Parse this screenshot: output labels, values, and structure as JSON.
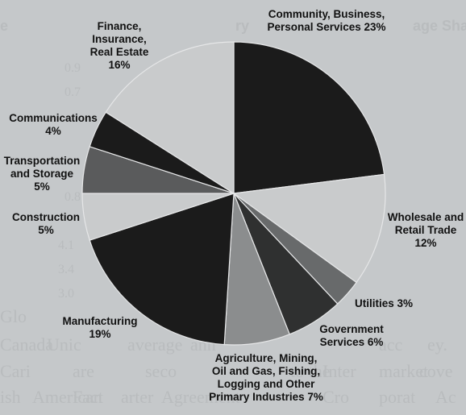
{
  "background_text": {
    "header_fragments": [
      "e",
      "age Share",
      "ry"
    ],
    "column_numbers": [
      "0.9",
      "0.7",
      "0.8",
      "4.1",
      "3.4",
      "3.0",
      "0.7",
      "0.8"
    ],
    "lines": [
      "Glo",
      "Canada",
      "Unic",
      "average",
      "ann",
      "acc",
      "ey.",
      "Cari",
      "are",
      "seco",
      "to the",
      "Inter",
      "market",
      "cove",
      "ish",
      "American",
      "Fact",
      "arter",
      "Agreement",
      "Cro",
      "porat",
      "Ac"
    ]
  },
  "chart_data": {
    "type": "pie",
    "title": "",
    "colors": {
      "black": "#1b1b1b",
      "light": "#c9cbcc",
      "mid": "#686a6b",
      "mid_light": "#8b8d8e",
      "mid_dark": "#454647",
      "dark": "#2f3030"
    },
    "slices": [
      {
        "name": "Community, Business, Personal Services",
        "value": 23,
        "color": "#1b1b1b",
        "label_lines": [
          "Community, Business,",
          "Personal Services 23%"
        ]
      },
      {
        "name": "Wholesale and Retail Trade",
        "value": 12,
        "color": "#c9cbcc",
        "label_lines": [
          "Wholesale and",
          "Retail Trade",
          "12%"
        ]
      },
      {
        "name": "Utilities",
        "value": 3,
        "color": "#686a6b",
        "label_lines": [
          "Utilities 3%"
        ]
      },
      {
        "name": "Government Services",
        "value": 6,
        "color": "#2f3030",
        "label_lines": [
          "Government",
          "Services 6%"
        ]
      },
      {
        "name": "Agriculture, Mining, Oil and Gas, Fishing, Logging and Other Primary Industries",
        "value": 7,
        "color": "#8b8d8e",
        "label_lines": [
          "Agriculture, Mining,",
          "Oil and Gas, Fishing,",
          "Logging and Other",
          "Primary Industries 7%"
        ]
      },
      {
        "name": "Manufacturing",
        "value": 19,
        "color": "#1b1b1b",
        "label_lines": [
          "Manufacturing",
          "19%"
        ]
      },
      {
        "name": "Construction",
        "value": 5,
        "color": "#c9cbcc",
        "label_lines": [
          "Construction",
          "5%"
        ]
      },
      {
        "name": "Transportation and Storage",
        "value": 5,
        "color": "#5a5b5c",
        "label_lines": [
          "Transportation",
          "and Storage",
          "5%"
        ]
      },
      {
        "name": "Communications",
        "value": 4,
        "color": "#1b1b1b",
        "label_lines": [
          "Communications",
          "4%"
        ]
      },
      {
        "name": "Finance, Insurance, Real Estate",
        "value": 16,
        "color": "#c9cbcc",
        "label_lines": [
          "Finance,",
          "Insurance,",
          "Real Estate",
          "16%"
        ]
      }
    ]
  }
}
